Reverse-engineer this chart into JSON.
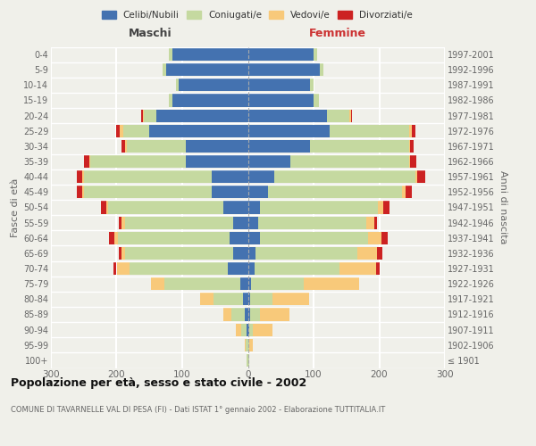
{
  "age_groups": [
    "100+",
    "95-99",
    "90-94",
    "85-89",
    "80-84",
    "75-79",
    "70-74",
    "65-69",
    "60-64",
    "55-59",
    "50-54",
    "45-49",
    "40-44",
    "35-39",
    "30-34",
    "25-29",
    "20-24",
    "15-19",
    "10-14",
    "5-9",
    "0-4"
  ],
  "birth_years": [
    "≤ 1901",
    "1902-1906",
    "1907-1911",
    "1912-1916",
    "1917-1921",
    "1922-1926",
    "1927-1931",
    "1932-1936",
    "1937-1941",
    "1942-1946",
    "1947-1951",
    "1952-1956",
    "1957-1961",
    "1962-1966",
    "1967-1971",
    "1972-1976",
    "1977-1981",
    "1982-1986",
    "1987-1991",
    "1992-1996",
    "1997-2001"
  ],
  "maschi": {
    "celibi": [
      0,
      0,
      2,
      5,
      8,
      12,
      30,
      22,
      28,
      22,
      38,
      55,
      55,
      95,
      95,
      150,
      140,
      115,
      105,
      125,
      115
    ],
    "coniugati": [
      2,
      3,
      8,
      20,
      45,
      115,
      150,
      165,
      170,
      165,
      175,
      195,
      195,
      145,
      90,
      40,
      18,
      5,
      5,
      5,
      5
    ],
    "vedovi": [
      0,
      2,
      8,
      12,
      20,
      20,
      20,
      5,
      5,
      5,
      3,
      2,
      2,
      2,
      2,
      5,
      2,
      0,
      0,
      0,
      0
    ],
    "divorziati": [
      0,
      0,
      0,
      0,
      0,
      0,
      5,
      5,
      8,
      5,
      8,
      8,
      8,
      8,
      5,
      5,
      2,
      0,
      0,
      0,
      0
    ]
  },
  "femmine": {
    "nubili": [
      0,
      0,
      2,
      3,
      3,
      5,
      10,
      12,
      18,
      15,
      18,
      30,
      40,
      65,
      95,
      125,
      120,
      100,
      95,
      110,
      100
    ],
    "coniugate": [
      2,
      2,
      5,
      15,
      35,
      80,
      130,
      155,
      165,
      165,
      180,
      205,
      215,
      180,
      150,
      120,
      35,
      8,
      5,
      5,
      5
    ],
    "vedove": [
      0,
      5,
      30,
      45,
      55,
      85,
      55,
      30,
      20,
      12,
      8,
      5,
      3,
      2,
      2,
      5,
      2,
      0,
      0,
      0,
      0
    ],
    "divorziate": [
      0,
      0,
      0,
      0,
      0,
      0,
      5,
      8,
      10,
      5,
      10,
      10,
      12,
      10,
      5,
      5,
      2,
      0,
      0,
      0,
      0
    ]
  },
  "colors": {
    "celibi": "#4472b0",
    "coniugati": "#c5d9a0",
    "vedovi": "#f8c97a",
    "divorziati": "#cc2222"
  },
  "xlim": 300,
  "title": "Popolazione per età, sesso e stato civile - 2002",
  "subtitle": "COMUNE DI TAVARNELLE VAL DI PESA (FI) - Dati ISTAT 1° gennaio 2002 - Elaborazione TUTTITALIA.IT",
  "ylabel": "Fasce di età",
  "ylabel_right": "Anni di nascita",
  "label_maschi": "Maschi",
  "label_femmine": "Femmine",
  "legend_labels": [
    "Celibi/Nubili",
    "Coniugati/e",
    "Vedovi/e",
    "Divorziati/e"
  ],
  "bg_color": "#f0f0ea",
  "grid_color": "#ffffff",
  "text_color": "#666666",
  "title_color": "#111111",
  "femmine_label_color": "#cc3333",
  "maschi_label_color": "#444444"
}
